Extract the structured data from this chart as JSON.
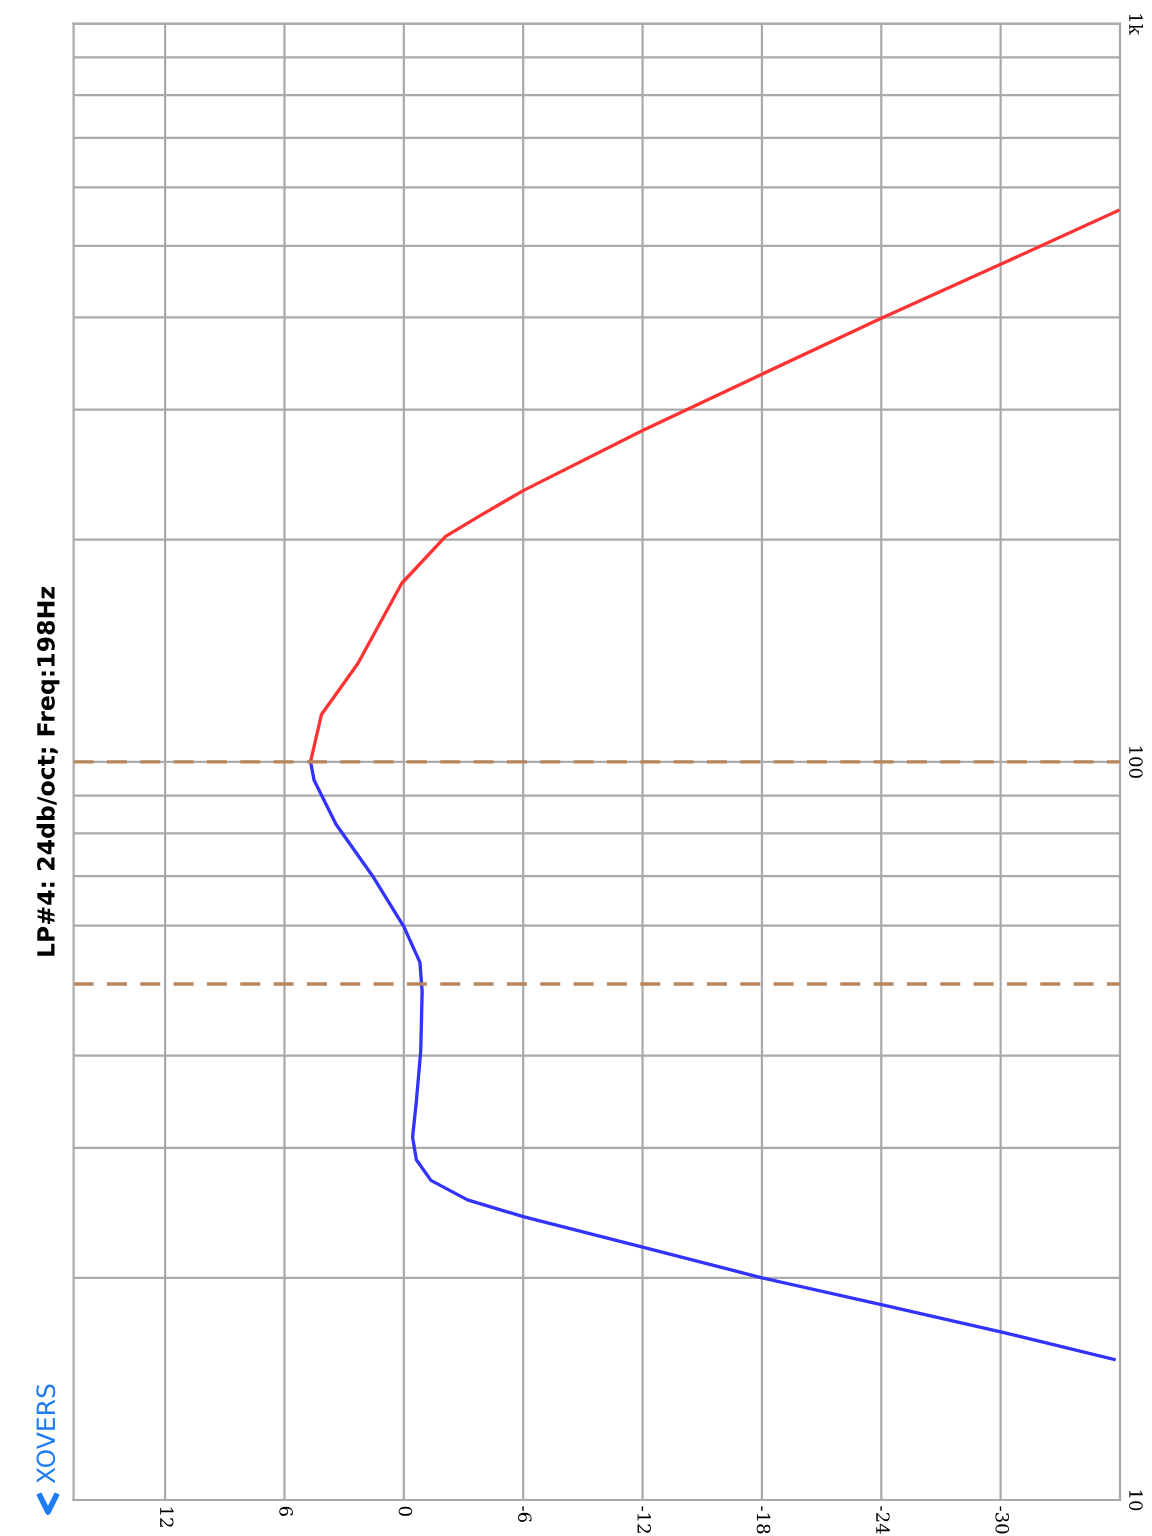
{
  "chart_data": {
    "type": "line",
    "title": "LP#4: 24db/oct; Freq:198Hz",
    "annotations": [
      "XOVERS"
    ],
    "log": "y",
    "xlim": [
      16.6,
      -36
    ],
    "ylim": [
      10,
      1000
    ],
    "xticks": [
      12,
      6,
      0,
      -6,
      -12,
      -18,
      -24,
      -30
    ],
    "yticks": [
      10,
      {
        "value": 20,
        "label": null
      },
      {
        "value": 30,
        "label": null
      },
      {
        "value": 40,
        "label": null
      },
      {
        "value": 60,
        "label": null
      },
      {
        "value": 70,
        "label": null
      },
      {
        "value": 80,
        "label": null
      },
      {
        "value": 90,
        "label": null
      },
      100,
      {
        "value": 200,
        "label": null
      },
      {
        "value": 300,
        "label": null
      },
      {
        "value": 400,
        "label": null
      },
      {
        "value": 500,
        "label": null
      },
      {
        "value": 600,
        "label": null
      },
      {
        "value": 700,
        "label": null
      },
      {
        "value": 800,
        "label": null
      },
      {
        "value": 900,
        "label": null
      },
      {
        "value": 1000,
        "label": "1k"
      }
    ],
    "grid": true,
    "line_style": "solid",
    "marker": "none",
    "series": [
      {
        "color": "#3333ff",
        "x": [
          -35.7,
          -30.0,
          -24.0,
          -18.0,
          -12.0,
          -6.0,
          -3.2,
          -1.36,
          -0.63,
          -0.44,
          -0.63,
          -0.85,
          -0.92,
          -0.81,
          0.0,
          1.58,
          3.41,
          4.51,
          4.69
        ],
        "values": [
          15.5,
          16.9,
          18.4,
          20.0,
          22.0,
          24.2,
          25.5,
          27.1,
          28.9,
          31.0,
          34.7,
          40.6,
          48.8,
          53.5,
          59.8,
          70.1,
          82.3,
          94.4,
          100
        ]
      },
      {
        "color": "#ff3333",
        "x": [
          4.69,
          4.14,
          2.31,
          0.11,
          -2.1,
          -3.9,
          -6.0,
          -12.0,
          -18.0,
          -24.0,
          -30.0,
          -35.9
        ],
        "values": [
          100,
          115.9,
          135.9,
          174.4,
          202,
          216,
          233,
          281,
          335,
          399,
          472,
          558
        ]
      }
    ],
    "ref_lines": [
      {
        "axis": "y",
        "value": 100,
        "color": "#b8865a",
        "line_style": "dashed"
      },
      {
        "axis": "y",
        "value": 50,
        "color": "#b8865a",
        "line_style": "dashed"
      }
    ]
  }
}
